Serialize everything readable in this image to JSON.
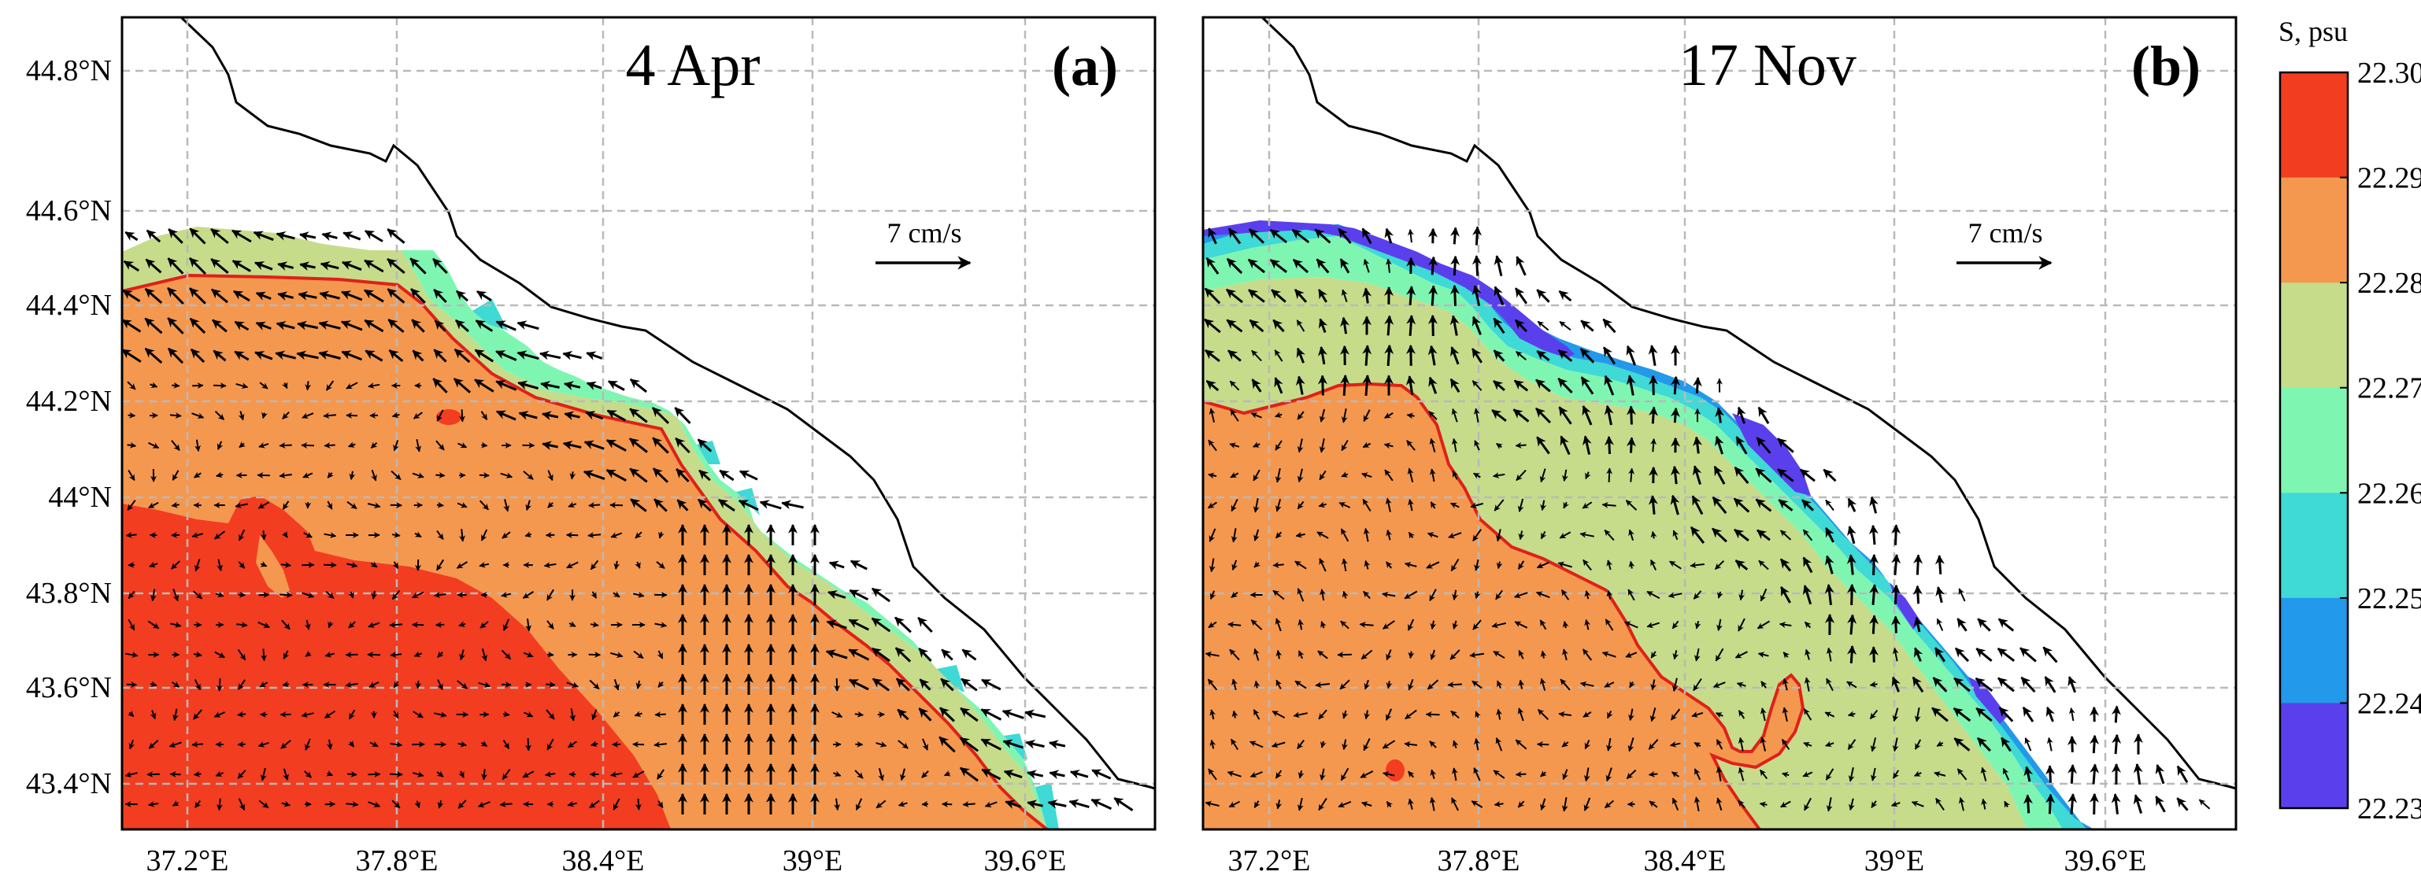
{
  "panels": [
    {
      "date": "4 Apr",
      "label": "(a)",
      "scale_label": "7 cm/s",
      "x_ticks": [
        "37.2°E",
        "37.8°E",
        "38.4°E",
        "39°E",
        "39.6°E"
      ],
      "y_ticks": [
        "44.8°N",
        "44.6°N",
        "44.4°N",
        "44.2°N",
        "44°N",
        "43.8°N",
        "43.6°N",
        "43.4°N"
      ]
    },
    {
      "date": "17 Nov",
      "label": "(b)",
      "scale_label": "7 cm/s",
      "x_ticks": [
        "37.2°E",
        "37.8°E",
        "38.4°E",
        "39°E",
        "39.6°E"
      ],
      "y_ticks": []
    }
  ],
  "colorbar": {
    "title": "S, psu",
    "ticks": [
      "22.30",
      "22.29",
      "22.28",
      "22.27",
      "22.26",
      "22.25",
      "22.24",
      "22.23"
    ],
    "colors": [
      "#f23d21",
      "#f5984f",
      "#c6dc8a",
      "#7ff5b2",
      "#3fd9d6",
      "#2299ea",
      "#5a40ec"
    ]
  }
}
